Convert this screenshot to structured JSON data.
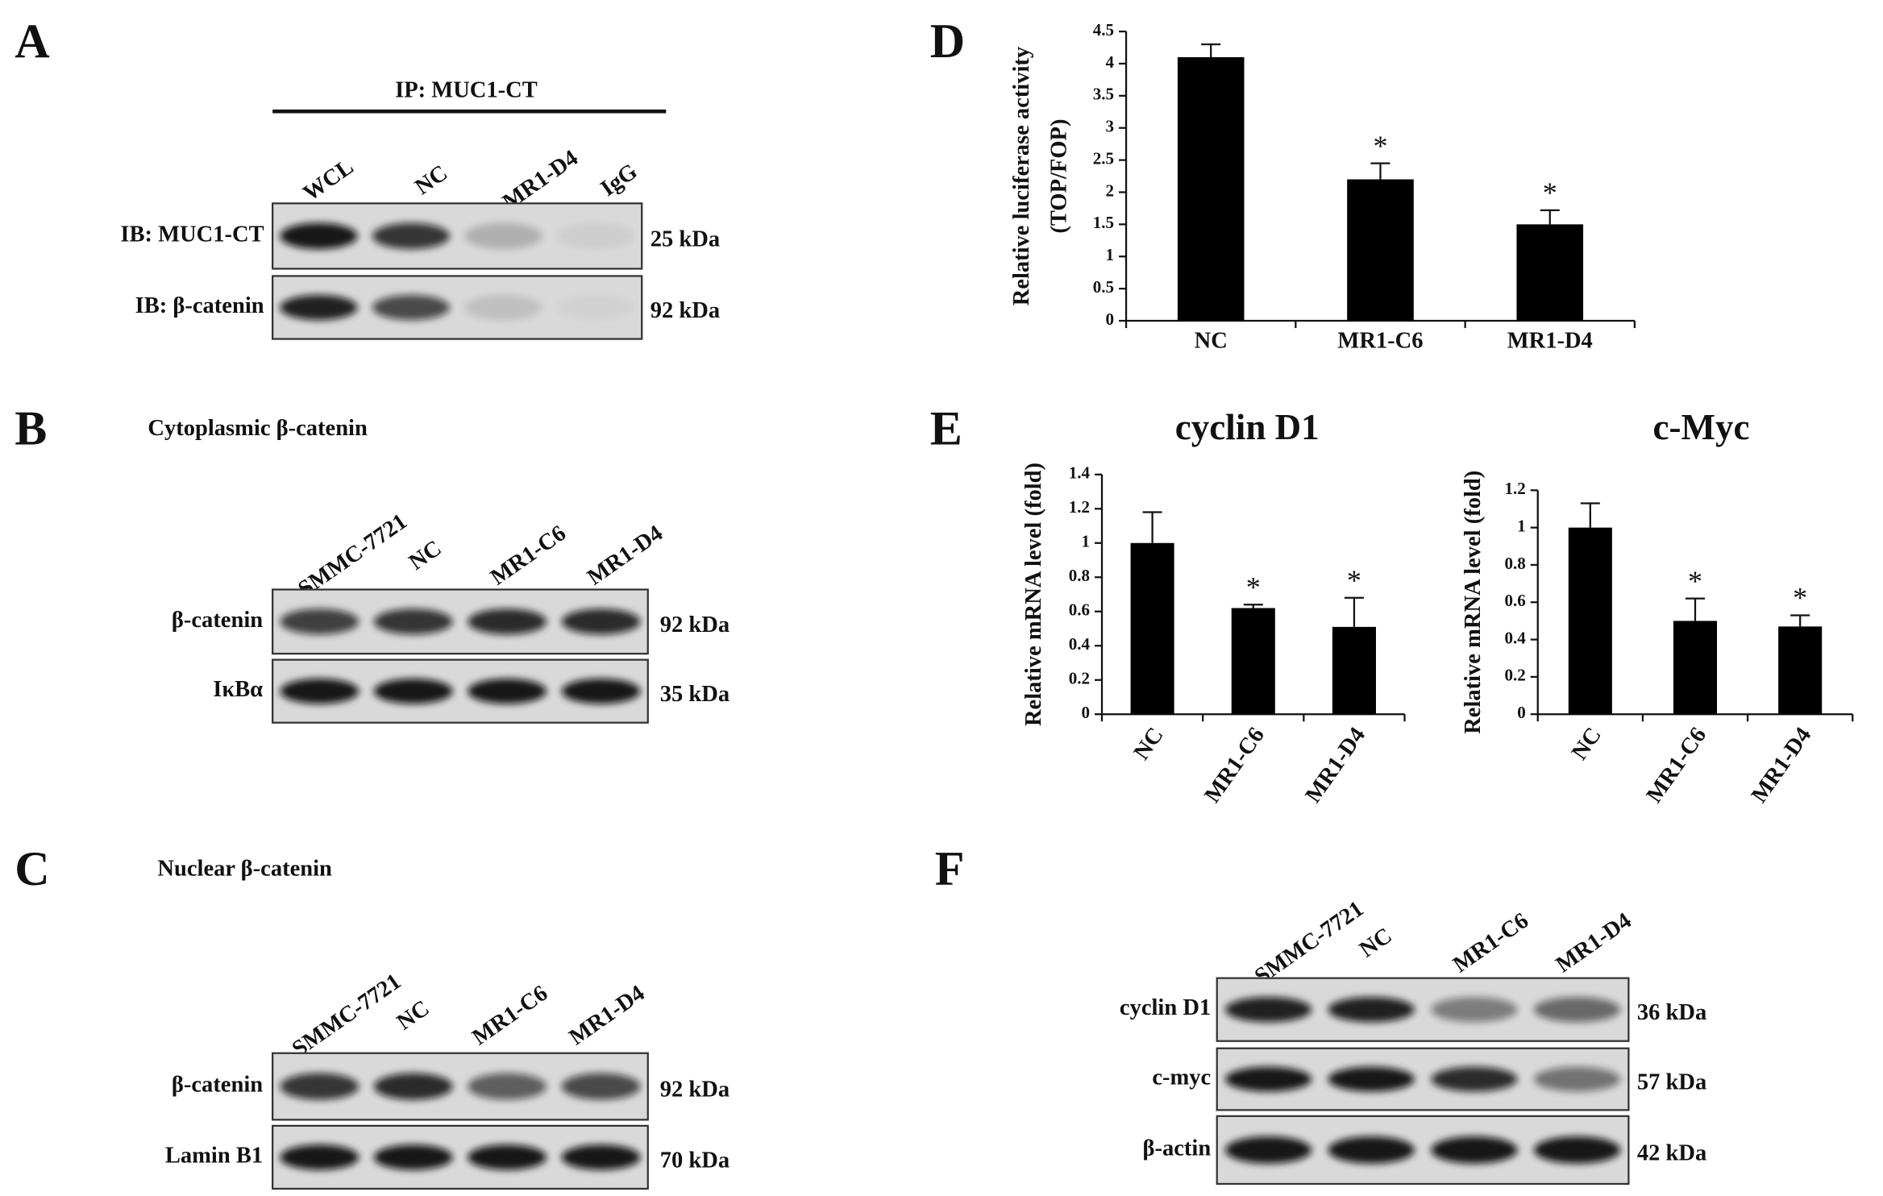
{
  "letters": [
    "A",
    "B",
    "C",
    "D",
    "E",
    "F"
  ],
  "blots": [
    {
      "title": "IP: MUC1-CT",
      "lanes": [
        "WCL",
        "NC",
        "MR1-D4",
        "IgG"
      ],
      "rows": [
        {
          "label": "IB: MUC1-CT",
          "size": "25 kDa"
        },
        {
          "label": "IB: β-catenin",
          "size": "92 kDa"
        }
      ]
    },
    {
      "title": "Cytoplasmic β-catenin",
      "lanes": [
        "SMMC-7721",
        "NC",
        "MR1-C6",
        "MR1-D4"
      ],
      "rows": [
        {
          "label": "β-catenin",
          "size": "92 kDa"
        },
        {
          "label": "IκBα",
          "size": "35 kDa"
        }
      ]
    },
    {
      "title": "Nuclear β-catenin",
      "lanes": [
        "SMMC-7721",
        "NC",
        "MR1-C6",
        "MR1-D4"
      ],
      "rows": [
        {
          "label": "β-catenin",
          "size": "92 kDa"
        },
        {
          "label": "Lamin B1",
          "size": "70 kDa"
        }
      ]
    },
    {
      "lanes": [
        "SMMC-7721",
        "NC",
        "MR1-C6",
        "MR1-D4"
      ],
      "rows": [
        {
          "label": "cyclin D1",
          "size": "36 kDa"
        },
        {
          "label": "c-myc",
          "size": "57 kDa"
        },
        {
          "label": "β-actin",
          "size": "42 kDa"
        }
      ]
    }
  ],
  "chart_data": [
    {
      "type": "bar",
      "y_label": [
        "Relative luciferase activity",
        "(TOP/FOP)"
      ],
      "categories": [
        "NC",
        "MR1-C6",
        "MR1-D4"
      ],
      "values": [
        4.1,
        2.2,
        1.5
      ],
      "errors": [
        0.2,
        0.25,
        0.22
      ],
      "significance": [
        null,
        "*",
        "*"
      ],
      "color": "#000000",
      "ylim": [
        0,
        4.5
      ],
      "yticks": [
        0,
        0.5,
        1,
        1.5,
        2,
        2.5,
        3,
        3.5,
        4,
        4.5
      ]
    },
    {
      "type": "bar",
      "title": "cyclin D1",
      "y_label": [
        "Relative mRNA level (fold)"
      ],
      "categories": [
        "NC",
        "MR1-C6",
        "MR1-D4"
      ],
      "values": [
        1.0,
        0.62,
        0.51
      ],
      "errors": [
        0.18,
        0.02,
        0.17
      ],
      "significance": [
        null,
        "*",
        "*"
      ],
      "color": "#000000",
      "ylim": [
        0,
        1.4
      ],
      "yticks": [
        0,
        0.2,
        0.4,
        0.6,
        0.8,
        1,
        1.2,
        1.4
      ]
    },
    {
      "type": "bar",
      "title": "c-Myc",
      "y_label": [
        "Relative mRNA level (fold)"
      ],
      "categories": [
        "NC",
        "MR1-C6",
        "MR1-D4"
      ],
      "values": [
        1.0,
        0.5,
        0.47
      ],
      "errors": [
        0.13,
        0.12,
        0.06
      ],
      "significance": [
        null,
        "*",
        "*"
      ],
      "color": "#000000",
      "ylim": [
        0,
        1.2
      ],
      "yticks": [
        0,
        0.2,
        0.4,
        0.6,
        0.8,
        1,
        1.2
      ]
    }
  ]
}
